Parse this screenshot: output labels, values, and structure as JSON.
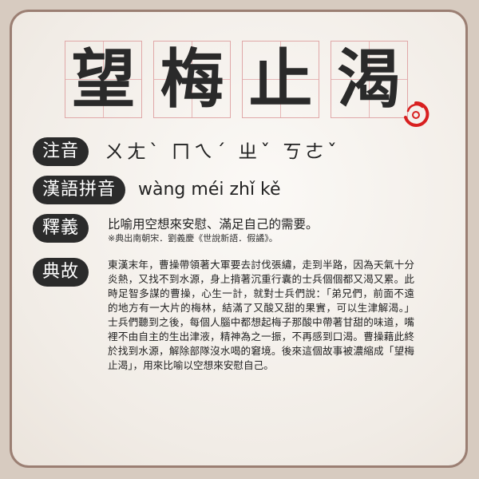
{
  "title_chars": [
    "望",
    "梅",
    "止",
    "渴"
  ],
  "zhuyin": {
    "label": "注音",
    "text": "ㄨㄤˋ ㄇㄟˊ ㄓˇ ㄎㄜˇ"
  },
  "pinyin": {
    "label": "漢語拼音",
    "text": "wàng méi zhǐ kě"
  },
  "meaning": {
    "label": "釋義",
    "text": "比喻用空想來安慰、滿足自己的需要。",
    "source": "※典出南朝宋．劉義慶《世說新語．假譎》。"
  },
  "story": {
    "label": "典故",
    "text": "東漢末年，曹操帶領著大軍要去討伐張繡，走到半路，因為天氣十分炎熱，又找不到水源，身上揹著沉重行囊的士兵個個都又渴又累。此時足智多謀的曹操，心生一計，就對士兵們說：「弟兄們，前面不遠的地方有一大片的梅林，結滿了又酸又甜的果實，可以生津解渴。」士兵們聽到之後，每個人腦中都想起梅子那酸中帶著甘甜的味道，嘴裡不由自主的生出津液，精神為之一振，不再感到口渴。曹操藉此終於找到水源，解除部隊沒水喝的窘境。後來這個故事被濃縮成「望梅止渴」，用來比喻以空想來安慰自己。"
  },
  "colors": {
    "label_bg": "#2b2b2b",
    "grid_line": "#e0a8a8",
    "seal_red": "#d82020",
    "border": "#9b7f73"
  }
}
